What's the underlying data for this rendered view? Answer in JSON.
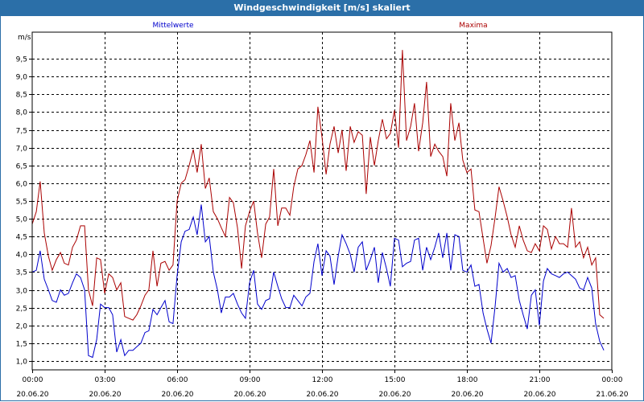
{
  "window": {
    "title": "Windgeschwindigkeit [m/s] skaliert"
  },
  "chart_data": {
    "type": "line",
    "title": "Windgeschwindigkeit [m/s] skaliert",
    "ylabel": "m/s",
    "xlabel": "",
    "ylim": [
      0.75,
      10.25
    ],
    "xlim": [
      0,
      24
    ],
    "yticks": [
      1.0,
      1.5,
      2.0,
      2.5,
      3.0,
      3.5,
      4.0,
      4.5,
      5.0,
      5.5,
      6.0,
      6.5,
      7.0,
      7.5,
      8.0,
      8.5,
      9.0,
      9.5
    ],
    "ytick_labels": [
      "1,0",
      "1,5",
      "2,0",
      "2,5",
      "3,0",
      "3,5",
      "4,0",
      "4,5",
      "5,0",
      "5,5",
      "6,0",
      "6,5",
      "7,0",
      "7,5",
      "8,0",
      "8,5",
      "9,0",
      "9,5"
    ],
    "xticks": [
      0,
      3,
      6,
      9,
      12,
      15,
      18,
      21,
      24
    ],
    "xtick_labels": [
      {
        "time": "00:00",
        "date": "20.06.20"
      },
      {
        "time": "03:00",
        "date": "20.06.20"
      },
      {
        "time": "06:00",
        "date": "20.06.20"
      },
      {
        "time": "09:00",
        "date": "20.06.20"
      },
      {
        "time": "12:00",
        "date": "20.06.20"
      },
      {
        "time": "15:00",
        "date": "20.06.20"
      },
      {
        "time": "18:00",
        "date": "20.06.20"
      },
      {
        "time": "21:00",
        "date": "20.06.20"
      },
      {
        "time": "00:00",
        "date": "21.06.20"
      }
    ],
    "grid": true,
    "colors": {
      "mittel": "#0000cc",
      "maxima": "#aa0000",
      "grid": "#000000"
    },
    "series": [
      {
        "name": "Mittelwerte",
        "points": [
          [
            0.0,
            3.5
          ],
          [
            0.17,
            3.55
          ],
          [
            0.33,
            4.1
          ],
          [
            0.5,
            3.3
          ],
          [
            0.67,
            3.0
          ],
          [
            0.83,
            2.7
          ],
          [
            1.0,
            2.65
          ],
          [
            1.17,
            3.0
          ],
          [
            1.33,
            2.85
          ],
          [
            1.5,
            2.9
          ],
          [
            1.67,
            3.2
          ],
          [
            1.83,
            3.45
          ],
          [
            2.0,
            3.35
          ],
          [
            2.17,
            3.0
          ],
          [
            2.33,
            1.15
          ],
          [
            2.5,
            1.1
          ],
          [
            2.67,
            1.6
          ],
          [
            2.83,
            2.6
          ],
          [
            3.0,
            2.5
          ],
          [
            3.17,
            2.5
          ],
          [
            3.33,
            2.3
          ],
          [
            3.5,
            1.25
          ],
          [
            3.67,
            1.6
          ],
          [
            3.83,
            1.15
          ],
          [
            4.0,
            1.3
          ],
          [
            4.17,
            1.3
          ],
          [
            4.33,
            1.4
          ],
          [
            4.5,
            1.5
          ],
          [
            4.67,
            1.8
          ],
          [
            4.83,
            1.85
          ],
          [
            5.0,
            2.45
          ],
          [
            5.17,
            2.3
          ],
          [
            5.33,
            2.5
          ],
          [
            5.5,
            2.7
          ],
          [
            5.67,
            2.1
          ],
          [
            5.83,
            2.05
          ],
          [
            6.0,
            3.4
          ],
          [
            6.17,
            4.35
          ],
          [
            6.33,
            4.65
          ],
          [
            6.5,
            4.7
          ],
          [
            6.67,
            5.05
          ],
          [
            6.83,
            4.55
          ],
          [
            7.0,
            5.4
          ],
          [
            7.17,
            4.35
          ],
          [
            7.33,
            4.5
          ],
          [
            7.5,
            3.5
          ],
          [
            7.67,
            3.0
          ],
          [
            7.83,
            2.35
          ],
          [
            8.0,
            2.8
          ],
          [
            8.17,
            2.8
          ],
          [
            8.33,
            2.9
          ],
          [
            8.5,
            2.6
          ],
          [
            8.67,
            2.35
          ],
          [
            8.83,
            2.2
          ],
          [
            9.0,
            3.2
          ],
          [
            9.17,
            3.55
          ],
          [
            9.33,
            2.6
          ],
          [
            9.5,
            2.45
          ],
          [
            9.67,
            2.7
          ],
          [
            9.83,
            2.75
          ],
          [
            10.0,
            3.5
          ],
          [
            10.17,
            3.1
          ],
          [
            10.33,
            2.75
          ],
          [
            10.5,
            2.5
          ],
          [
            10.67,
            2.5
          ],
          [
            10.83,
            2.85
          ],
          [
            11.0,
            2.7
          ],
          [
            11.17,
            2.55
          ],
          [
            11.33,
            2.8
          ],
          [
            11.5,
            2.9
          ],
          [
            11.67,
            3.8
          ],
          [
            11.83,
            4.3
          ],
          [
            12.0,
            3.4
          ],
          [
            12.17,
            4.1
          ],
          [
            12.33,
            3.95
          ],
          [
            12.5,
            3.15
          ],
          [
            12.67,
            3.95
          ],
          [
            12.83,
            4.55
          ],
          [
            13.0,
            4.3
          ],
          [
            13.17,
            4.0
          ],
          [
            13.33,
            3.5
          ],
          [
            13.5,
            4.2
          ],
          [
            13.67,
            4.35
          ],
          [
            13.83,
            3.55
          ],
          [
            14.0,
            3.85
          ],
          [
            14.17,
            4.2
          ],
          [
            14.33,
            3.2
          ],
          [
            14.5,
            4.05
          ],
          [
            14.67,
            3.6
          ],
          [
            14.83,
            3.1
          ],
          [
            15.0,
            4.45
          ],
          [
            15.17,
            4.4
          ],
          [
            15.33,
            3.65
          ],
          [
            15.5,
            3.75
          ],
          [
            15.67,
            3.8
          ],
          [
            15.83,
            4.4
          ],
          [
            16.0,
            4.45
          ],
          [
            16.17,
            3.55
          ],
          [
            16.33,
            4.2
          ],
          [
            16.5,
            3.85
          ],
          [
            16.67,
            4.2
          ],
          [
            16.83,
            4.6
          ],
          [
            17.0,
            3.9
          ],
          [
            17.17,
            4.6
          ],
          [
            17.33,
            3.55
          ],
          [
            17.5,
            4.55
          ],
          [
            17.67,
            4.5
          ],
          [
            17.83,
            3.55
          ],
          [
            18.0,
            3.5
          ],
          [
            18.17,
            3.7
          ],
          [
            18.33,
            3.1
          ],
          [
            18.5,
            3.15
          ],
          [
            18.67,
            2.35
          ],
          [
            18.83,
            1.9
          ],
          [
            19.0,
            1.5
          ],
          [
            19.17,
            2.55
          ],
          [
            19.33,
            3.75
          ],
          [
            19.5,
            3.5
          ],
          [
            19.67,
            3.6
          ],
          [
            19.83,
            3.35
          ],
          [
            20.0,
            3.4
          ],
          [
            20.17,
            2.7
          ],
          [
            20.33,
            2.3
          ],
          [
            20.5,
            1.9
          ],
          [
            20.67,
            2.85
          ],
          [
            20.83,
            3.0
          ],
          [
            21.0,
            2.0
          ],
          [
            21.17,
            3.25
          ],
          [
            21.33,
            3.6
          ],
          [
            21.5,
            3.45
          ],
          [
            21.67,
            3.4
          ],
          [
            21.83,
            3.35
          ],
          [
            22.0,
            3.45
          ],
          [
            22.17,
            3.5
          ],
          [
            22.33,
            3.4
          ],
          [
            22.5,
            3.3
          ],
          [
            22.67,
            3.05
          ],
          [
            22.83,
            3.0
          ],
          [
            23.0,
            3.35
          ],
          [
            23.17,
            3.05
          ],
          [
            23.33,
            2.05
          ],
          [
            23.5,
            1.55
          ],
          [
            23.67,
            1.3
          ]
        ]
      },
      {
        "name": "Maxima",
        "points": [
          [
            0.0,
            4.85
          ],
          [
            0.17,
            5.2
          ],
          [
            0.33,
            6.05
          ],
          [
            0.5,
            4.6
          ],
          [
            0.67,
            3.95
          ],
          [
            0.83,
            3.55
          ],
          [
            1.0,
            3.85
          ],
          [
            1.17,
            4.05
          ],
          [
            1.33,
            3.75
          ],
          [
            1.5,
            3.7
          ],
          [
            1.67,
            4.2
          ],
          [
            1.83,
            4.4
          ],
          [
            2.0,
            4.8
          ],
          [
            2.17,
            4.8
          ],
          [
            2.33,
            3.0
          ],
          [
            2.5,
            2.55
          ],
          [
            2.67,
            3.9
          ],
          [
            2.83,
            3.85
          ],
          [
            3.0,
            2.9
          ],
          [
            3.17,
            3.45
          ],
          [
            3.33,
            3.35
          ],
          [
            3.5,
            3.0
          ],
          [
            3.67,
            3.2
          ],
          [
            3.83,
            2.25
          ],
          [
            4.0,
            2.2
          ],
          [
            4.17,
            2.15
          ],
          [
            4.33,
            2.3
          ],
          [
            4.5,
            2.55
          ],
          [
            4.67,
            2.85
          ],
          [
            4.83,
            3.0
          ],
          [
            5.0,
            4.1
          ],
          [
            5.17,
            3.1
          ],
          [
            5.33,
            3.75
          ],
          [
            5.5,
            3.8
          ],
          [
            5.67,
            3.55
          ],
          [
            5.83,
            3.7
          ],
          [
            6.0,
            5.5
          ],
          [
            6.17,
            6.0
          ],
          [
            6.33,
            6.1
          ],
          [
            6.5,
            6.5
          ],
          [
            6.67,
            6.95
          ],
          [
            6.83,
            6.3
          ],
          [
            7.0,
            7.1
          ],
          [
            7.17,
            5.85
          ],
          [
            7.33,
            6.15
          ],
          [
            7.5,
            5.2
          ],
          [
            7.67,
            5.0
          ],
          [
            7.83,
            4.75
          ],
          [
            8.0,
            4.5
          ],
          [
            8.17,
            5.6
          ],
          [
            8.33,
            5.45
          ],
          [
            8.5,
            4.75
          ],
          [
            8.67,
            3.6
          ],
          [
            8.83,
            4.8
          ],
          [
            9.0,
            5.2
          ],
          [
            9.17,
            5.5
          ],
          [
            9.33,
            4.6
          ],
          [
            9.5,
            3.9
          ],
          [
            9.67,
            4.85
          ],
          [
            9.83,
            5.05
          ],
          [
            10.0,
            6.4
          ],
          [
            10.17,
            4.8
          ],
          [
            10.33,
            5.3
          ],
          [
            10.5,
            5.3
          ],
          [
            10.67,
            5.1
          ],
          [
            10.83,
            5.9
          ],
          [
            11.0,
            6.4
          ],
          [
            11.17,
            6.5
          ],
          [
            11.33,
            6.8
          ],
          [
            11.5,
            7.2
          ],
          [
            11.67,
            6.3
          ],
          [
            11.83,
            8.15
          ],
          [
            12.0,
            7.3
          ],
          [
            12.17,
            6.25
          ],
          [
            12.33,
            7.1
          ],
          [
            12.5,
            7.6
          ],
          [
            12.67,
            6.85
          ],
          [
            12.83,
            7.5
          ],
          [
            13.0,
            6.35
          ],
          [
            13.17,
            7.6
          ],
          [
            13.33,
            7.15
          ],
          [
            13.5,
            7.45
          ],
          [
            13.67,
            7.35
          ],
          [
            13.83,
            5.7
          ],
          [
            14.0,
            7.3
          ],
          [
            14.17,
            6.5
          ],
          [
            14.33,
            7.2
          ],
          [
            14.5,
            7.8
          ],
          [
            14.67,
            7.25
          ],
          [
            14.83,
            7.4
          ],
          [
            15.0,
            8.05
          ],
          [
            15.17,
            7.0
          ],
          [
            15.33,
            9.75
          ],
          [
            15.5,
            7.2
          ],
          [
            15.67,
            7.6
          ],
          [
            15.83,
            8.25
          ],
          [
            16.0,
            6.9
          ],
          [
            16.17,
            7.7
          ],
          [
            16.33,
            8.85
          ],
          [
            16.5,
            6.75
          ],
          [
            16.67,
            7.1
          ],
          [
            16.83,
            6.9
          ],
          [
            17.0,
            6.75
          ],
          [
            17.17,
            6.2
          ],
          [
            17.33,
            8.25
          ],
          [
            17.5,
            7.2
          ],
          [
            17.67,
            7.7
          ],
          [
            17.83,
            6.65
          ],
          [
            18.0,
            6.3
          ],
          [
            18.17,
            6.4
          ],
          [
            18.33,
            5.25
          ],
          [
            18.5,
            5.2
          ],
          [
            18.67,
            4.45
          ],
          [
            18.83,
            3.75
          ],
          [
            19.0,
            4.25
          ],
          [
            19.17,
            5.05
          ],
          [
            19.33,
            5.9
          ],
          [
            19.5,
            5.5
          ],
          [
            19.67,
            5.05
          ],
          [
            19.83,
            4.55
          ],
          [
            20.0,
            4.2
          ],
          [
            20.17,
            4.8
          ],
          [
            20.33,
            4.4
          ],
          [
            20.5,
            4.1
          ],
          [
            20.67,
            4.05
          ],
          [
            20.83,
            4.3
          ],
          [
            21.0,
            4.1
          ],
          [
            21.17,
            4.8
          ],
          [
            21.33,
            4.7
          ],
          [
            21.5,
            4.15
          ],
          [
            21.67,
            4.5
          ],
          [
            21.83,
            4.3
          ],
          [
            22.0,
            4.3
          ],
          [
            22.17,
            4.2
          ],
          [
            22.33,
            5.3
          ],
          [
            22.5,
            4.2
          ],
          [
            22.67,
            4.35
          ],
          [
            22.83,
            3.9
          ],
          [
            23.0,
            4.2
          ],
          [
            23.17,
            3.7
          ],
          [
            23.33,
            3.9
          ],
          [
            23.5,
            2.3
          ],
          [
            23.67,
            2.2
          ]
        ]
      }
    ]
  }
}
